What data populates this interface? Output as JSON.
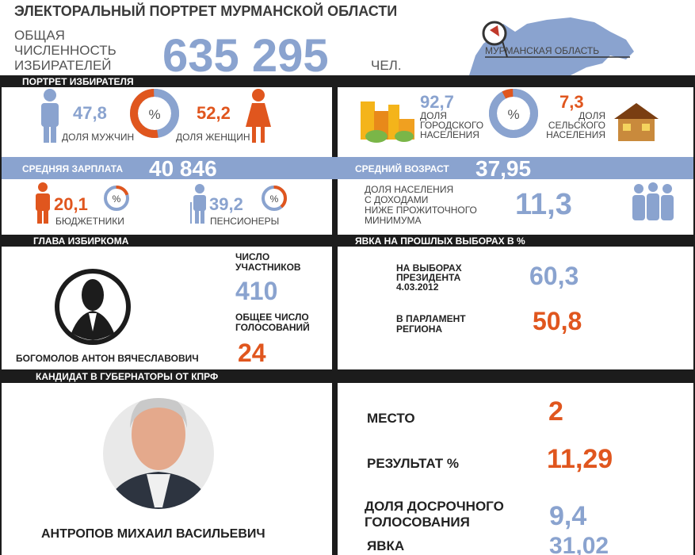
{
  "header": {
    "title": "ЭЛЕКТОРАЛЬНЫЙ ПОРТРЕТ МУРМАНСКОЙ ОБЛАСТИ",
    "voters_label": [
      "ОБЩАЯ",
      "ЧИСЛЕННОСТЬ",
      "ИЗБИРАТЕЛЕЙ"
    ],
    "voters_value": "635 295",
    "voters_unit": "ЧЕЛ.",
    "region": "МУРМАНСКАЯ ОБЛАСТЬ"
  },
  "portrait": {
    "title": "ПОРТРЕТ ИЗБИРАТЕЛЯ",
    "percent_sign": "%",
    "men": {
      "value": 47.8,
      "label": "47,8"
    },
    "men_label": "ДОЛЯ МУЖЧИН",
    "women": {
      "value": 52.2,
      "label": "52,2"
    },
    "women_label": "ДОЛЯ ЖЕНЩИН",
    "urban": {
      "value": 92.7,
      "label": "92,7"
    },
    "urban_label": [
      "ДОЛЯ",
      "ГОРОДСКОГО",
      "НАСЕЛЕНИЯ"
    ],
    "rural": {
      "value": 7.3,
      "label": "7,3"
    },
    "rural_label": [
      "ДОЛЯ",
      "СЕЛЬСКОГО",
      "НАСЕЛЕНИЯ"
    ],
    "salary_label": "СРЕДНЯЯ ЗАРПЛАТА",
    "salary": "40 846",
    "age_label": "СРЕДНИЙ ВОЗРАСТ",
    "age": "37,95",
    "public_sector": {
      "value": 20.1,
      "label": "20,1"
    },
    "public_sector_label": "БЮДЖЕТНИКИ",
    "pensioners": {
      "value": 39.2,
      "label": "39,2"
    },
    "pensioners_label": "ПЕНСИОНЕРЫ",
    "poverty_label": [
      "ДОЛЯ НАСЕЛЕНИЯ",
      "С ДОХОДАМИ",
      "НИЖЕ ПРОЖИТОЧНОГО",
      "МИНИМУМА"
    ],
    "poverty": "11,3"
  },
  "commission": {
    "title": "ГЛАВА ИЗБИРКОМА",
    "chair": "БОГОМОЛОВ АНТОН ВЯЧЕСЛАВОВИЧ",
    "members_label": [
      "ЧИСЛО",
      "УЧАСТНИКОВ"
    ],
    "members": "410",
    "votes_label": [
      "ОБЩЕЕ ЧИСЛО",
      "ГОЛОСОВАНИЙ"
    ],
    "votes": "24"
  },
  "turnout": {
    "title": "ЯВКА НА ПРОШЛЫХ ВЫБОРАХ В %",
    "president_label": [
      "НА ВЫБОРАХ",
      "ПРЕЗИДЕНТА",
      "4.03.2012"
    ],
    "president": "60,3",
    "parliament_label": [
      "В ПАРЛАМЕНТ",
      "РЕГИОНА"
    ],
    "parliament": "50,8"
  },
  "candidate": {
    "title": "КАНДИДАТ В ГУБЕРНАТОРЫ ОТ КПРФ",
    "name": "АНТРОПОВ МИХАИЛ ВАСИЛЬЕВИЧ",
    "place_label": "МЕСТО",
    "place": "2",
    "result_label": "РЕЗУЛЬТАТ %",
    "result": "11,29",
    "early_label": [
      "ДОЛЯ ДОСРОЧНОГО",
      "ГОЛОСОВАНИЯ"
    ],
    "early": "9,4",
    "turnout_label": "ЯВКА",
    "turnout": "31,02"
  }
}
